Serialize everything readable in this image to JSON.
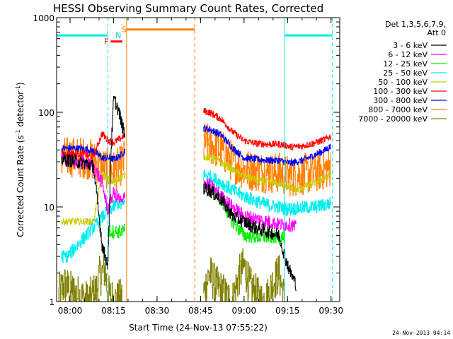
{
  "chart_data": {
    "type": "line",
    "title": "HESSI Observing Summary Count Rates, Corrected",
    "xlabel": "Start Time (24-Nov-13 07:55:22)",
    "ylabel_main": "Corrected Count Rate (s",
    "ylabel_sup1": "-1",
    "ylabel_mid": " detector",
    "ylabel_sup2": "-1",
    "ylabel_end": ")",
    "yscale": "log",
    "ylim": [
      1,
      1000
    ],
    "xlim": [
      "07:55:22",
      "09:33:00"
    ],
    "x_ticks": [
      "08:00",
      "08:15",
      "08:30",
      "08:45",
      "09:00",
      "09:15",
      "09:30"
    ],
    "y_ticks": [
      "1",
      "10",
      "100",
      "1000"
    ],
    "legend": {
      "header1": "Det 1,3,5,6,7,9,",
      "header2": "Att 0",
      "placement": "right",
      "entries": [
        {
          "label": "3 - 6 keV",
          "color": "#000000"
        },
        {
          "label": "6 - 12 keV",
          "color": "#ff00ff"
        },
        {
          "label": "12 - 25 keV",
          "color": "#00ee00"
        },
        {
          "label": "25 - 50 keV",
          "color": "#00eeee"
        },
        {
          "label": "50 - 100 keV",
          "color": "#cccc00"
        },
        {
          "label": "100 - 300 keV",
          "color": "#ff0000"
        },
        {
          "label": "300 - 800 keV",
          "color": "#0000ff"
        },
        {
          "label": "800 - 7000 keV",
          "color": "#ff7f00"
        },
        {
          "label": "7000 - 20000 keV",
          "color": "#808000"
        }
      ]
    },
    "markers": [
      {
        "label": "S",
        "color": "#ff7f00",
        "value": 750
      },
      {
        "label": "N",
        "color": "#00cccc",
        "value": 650
      },
      {
        "label": "F",
        "color": "#ff0000",
        "value": 560
      }
    ],
    "bars": [
      {
        "name": "cyan-left",
        "color": "#00eeee",
        "start": "07:55:22",
        "end": "08:13:00",
        "value": 650
      },
      {
        "name": "red-flare",
        "color": "#ff0000",
        "start": "08:14:00",
        "end": "08:18:00",
        "value": 560
      },
      {
        "name": "orange-saa",
        "color": "#ff7f00",
        "start": "08:19:30",
        "end": "08:43:00",
        "value": 750
      },
      {
        "name": "cyan-right",
        "color": "#00eeee",
        "start": "09:14:00",
        "end": "09:30:30",
        "value": 650
      }
    ],
    "vlines": [
      {
        "time": "08:13:00",
        "color": "#00eeee",
        "dashed": true
      },
      {
        "time": "08:19:30",
        "color": "#ff7f00",
        "dashed": false
      },
      {
        "time": "08:43:00",
        "color": "#ff7f00",
        "dashed": true
      },
      {
        "time": "09:14:00",
        "color": "#00eeee",
        "dashed": false
      },
      {
        "time": "09:30:30",
        "color": "#00eeee",
        "dashed": true
      }
    ],
    "gap": [
      "08:19:30",
      "08:45:30"
    ],
    "series": [
      {
        "name": "3 - 6 keV",
        "color": "#000000",
        "x": [
          "07:57",
          "08:00",
          "08:05",
          "08:08",
          "08:11",
          "08:12",
          "08:13",
          "08:14",
          "08:15",
          "08:16",
          "08:17",
          "08:18",
          "08:19",
          "08:46",
          "08:48",
          "08:52",
          "08:56",
          "09:00",
          "09:04",
          "09:08",
          "09:12",
          "09:14",
          "09:16",
          "09:18"
        ],
        "y": [
          32,
          31,
          29,
          27,
          4,
          3,
          2.5,
          35,
          140,
          120,
          95,
          70,
          55,
          16,
          15,
          12,
          8,
          7,
          6,
          5.5,
          5,
          3,
          2,
          1.5
        ]
      },
      {
        "name": "6 - 12 keV",
        "color": "#ff00ff",
        "x": [
          "07:57",
          "08:00",
          "08:05",
          "08:08",
          "08:11",
          "08:13",
          "08:14",
          "08:15",
          "08:16",
          "08:17",
          "08:18",
          "08:19",
          "08:46",
          "08:48",
          "08:52",
          "08:56",
          "09:00",
          "09:04",
          "09:08",
          "09:12",
          "09:14",
          "09:16",
          "09:18"
        ],
        "y": [
          32,
          31,
          29,
          27,
          18,
          9,
          12,
          14,
          13,
          12,
          11,
          14,
          18,
          17,
          13,
          10,
          8,
          7.5,
          7,
          6.5,
          6.5,
          6.5,
          6
        ]
      },
      {
        "name": "12 - 25 keV",
        "color": "#00ee00",
        "x": [
          "08:13",
          "08:14",
          "08:15",
          "08:16",
          "08:17",
          "08:18",
          "08:19",
          "08:46",
          "08:48",
          "08:52",
          "08:56",
          "09:00",
          "09:04",
          "09:08",
          "09:12",
          "09:14"
        ],
        "y": [
          5.5,
          5.5,
          5.5,
          5.5,
          5.5,
          5.5,
          6,
          17,
          16,
          12,
          7,
          5,
          4.8,
          4.8,
          4.8,
          4.8
        ]
      },
      {
        "name": "25 - 50 keV",
        "color": "#00eeee",
        "x": [
          "07:57",
          "07:59",
          "08:13",
          "08:14",
          "08:15",
          "08:16",
          "08:17",
          "08:18",
          "08:19",
          "08:46",
          "08:48",
          "08:52",
          "08:56",
          "09:00",
          "09:04",
          "09:08",
          "09:12",
          "09:14",
          "09:16",
          "09:20",
          "09:24",
          "09:28",
          "09:30"
        ],
        "y": [
          3,
          3,
          9,
          9.5,
          10,
          11,
          11,
          10,
          12,
          22,
          21,
          18,
          15,
          13,
          11.5,
          10.5,
          10,
          9.5,
          9.5,
          9.8,
          10,
          10.5,
          11
        ]
      },
      {
        "name": "50 - 100 keV",
        "color": "#cccc00",
        "x": [
          "07:57",
          "08:00",
          "08:05",
          "08:08",
          "08:11",
          "08:13",
          "08:15",
          "08:17",
          "08:19",
          "08:46",
          "08:50",
          "08:55",
          "09:00",
          "09:05",
          "09:10",
          "09:14",
          "09:18",
          "09:22",
          "09:26",
          "09:30"
        ],
        "y": [
          7,
          7,
          7,
          7,
          22,
          20,
          18,
          20,
          22,
          34,
          32,
          26,
          21,
          19,
          18,
          17,
          15,
          17,
          19,
          22
        ]
      },
      {
        "name": "100 - 300 keV",
        "color": "#ff0000",
        "x": [
          "07:57",
          "08:00",
          "08:05",
          "08:08",
          "08:11",
          "08:13",
          "08:15",
          "08:17",
          "08:19",
          "08:46",
          "08:48",
          "08:52",
          "08:56",
          "09:00",
          "09:04",
          "09:08",
          "09:12",
          "09:14",
          "09:16",
          "09:20",
          "09:24",
          "09:28",
          "09:30"
        ],
        "y": [
          36,
          37,
          36,
          34,
          60,
          50,
          48,
          52,
          58,
          103,
          100,
          85,
          62,
          50,
          47,
          46,
          46,
          45,
          43,
          44,
          47,
          52,
          56
        ]
      },
      {
        "name": "300 - 800 keV",
        "color": "#0000ff",
        "x": [
          "07:57",
          "08:00",
          "08:05",
          "08:08",
          "08:11",
          "08:13",
          "08:15",
          "08:17",
          "08:19",
          "08:46",
          "08:48",
          "08:52",
          "08:56",
          "09:00",
          "09:04",
          "09:08",
          "09:12",
          "09:14",
          "09:16",
          "09:20",
          "09:24",
          "09:28",
          "09:30"
        ],
        "y": [
          41,
          42,
          41,
          39,
          33,
          33,
          32,
          34,
          40,
          68,
          66,
          58,
          42,
          33,
          32,
          31,
          31,
          30,
          29,
          31,
          35,
          40,
          44
        ]
      },
      {
        "name": "800 - 7000 keV",
        "color": "#ff7f00",
        "x": [
          "07:57",
          "08:00",
          "08:05",
          "08:08",
          "08:11",
          "08:13",
          "08:15",
          "08:17",
          "08:19",
          "08:46",
          "08:48",
          "08:52",
          "08:56",
          "09:00",
          "09:04",
          "09:08",
          "09:12",
          "09:14",
          "09:16",
          "09:20",
          "09:24",
          "09:28",
          "09:30"
        ],
        "y": [
          33,
          34,
          33,
          31,
          26,
          25,
          24,
          26,
          32,
          48,
          46,
          40,
          30,
          25,
          24,
          23,
          23,
          22,
          21,
          22,
          23,
          25,
          27
        ]
      },
      {
        "name": "7000 - 20000 keV",
        "color": "#808000",
        "x": [
          "07:56",
          "07:58",
          "08:00",
          "08:02",
          "08:04",
          "08:06",
          "08:09",
          "08:10",
          "08:12",
          "08:13",
          "08:14",
          "08:16",
          "08:18",
          "08:46",
          "08:48",
          "08:50",
          "08:52",
          "08:54",
          "08:56",
          "08:58",
          "09:00",
          "09:02",
          "09:04",
          "09:06",
          "09:08",
          "09:10",
          "09:12",
          "09:14"
        ],
        "y": [
          1.2,
          1.5,
          1.3,
          1.2,
          1.1,
          1.0,
          1.3,
          1.8,
          2.2,
          1.2,
          1.1,
          1.0,
          1.1,
          1.2,
          2.0,
          1.5,
          1.3,
          1.1,
          1.0,
          1.8,
          2.4,
          1.4,
          1.2,
          1.0,
          1.1,
          1.6,
          2.0,
          1.0
        ]
      }
    ]
  },
  "footer": {
    "stamp": "24-Nov-2013 04:14"
  }
}
